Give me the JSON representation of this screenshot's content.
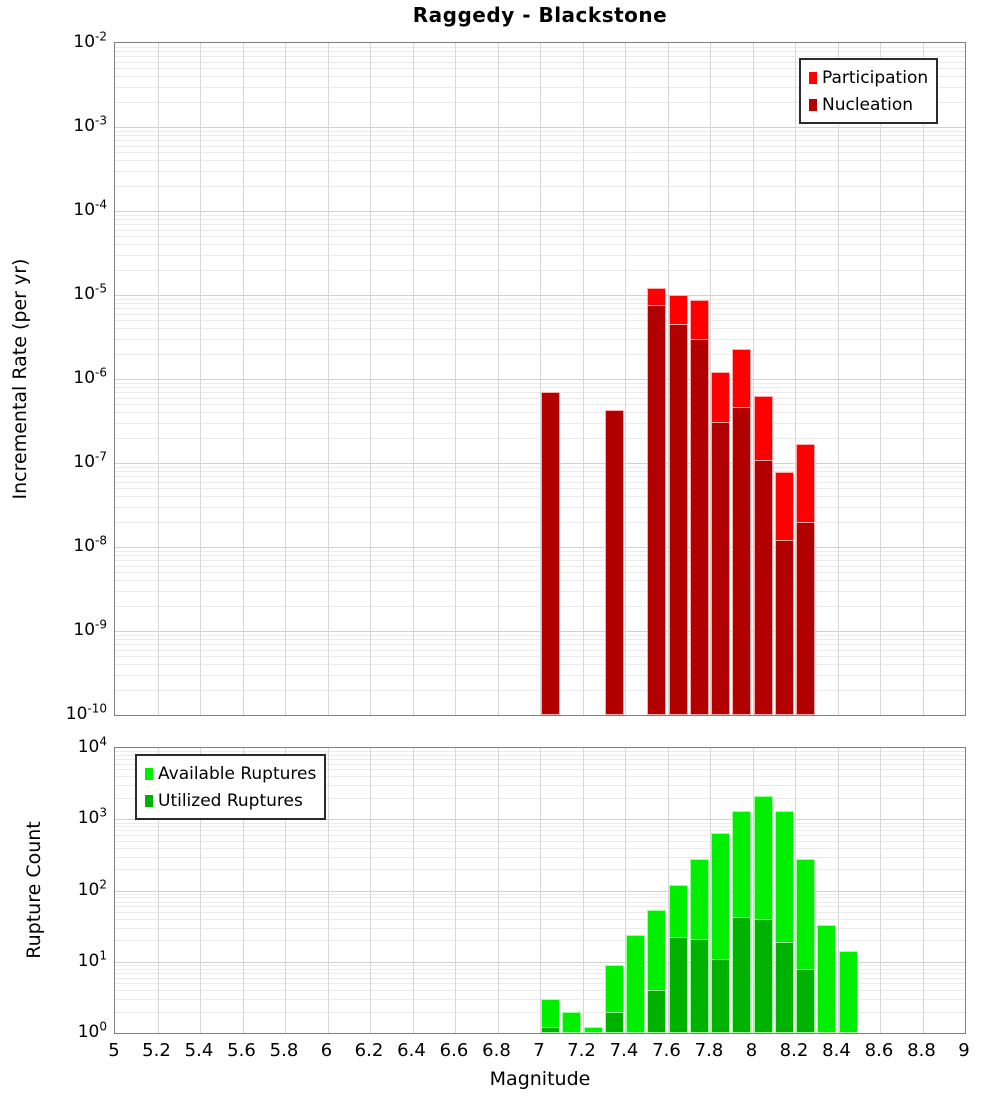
{
  "title": "Raggedy - Blackstone",
  "x_axis": {
    "label": "Magnitude",
    "xlim": [
      5,
      9
    ],
    "tick_labels": [
      "5",
      "5.2",
      "5.4",
      "5.6",
      "5.8",
      "6",
      "6.2",
      "6.4",
      "6.6",
      "6.8",
      "7",
      "7.2",
      "7.4",
      "7.6",
      "7.8",
      "8",
      "8.2",
      "8.4",
      "8.6",
      "8.8",
      "9"
    ]
  },
  "chart_data": [
    {
      "id": "rate",
      "type": "bar",
      "title": "Raggedy - Blackstone",
      "ylabel": "Incremental Rate (per yr)",
      "y_scale": "log",
      "ylim": [
        1e-10,
        0.01
      ],
      "y_tick_exponents": [
        -2,
        -3,
        -4,
        -5,
        -6,
        -7,
        -8,
        -9,
        -10
      ],
      "grid": true,
      "legend_position": "top-right",
      "bin_width": 0.1,
      "categories": [
        7.05,
        7.35,
        7.55,
        7.65,
        7.75,
        7.85,
        7.95,
        8.05,
        8.15,
        8.25
      ],
      "series": [
        {
          "name": "Participation",
          "color": "#ff0000",
          "edge_color": "#ffaaaa",
          "values": [
            7e-07,
            4.3e-07,
            1.2e-05,
            9.9e-06,
            8.7e-06,
            1.2e-06,
            2.3e-06,
            6.3e-07,
            7.8e-08,
            1.7e-07
          ]
        },
        {
          "name": "Nucleation",
          "color": "#b20000",
          "edge_color": "#ffaaaa",
          "values": [
            7e-07,
            4.3e-07,
            7.6e-06,
            4.5e-06,
            3e-06,
            3.1e-07,
            4.7e-07,
            1.1e-07,
            1.2e-08,
            2e-08
          ]
        }
      ]
    },
    {
      "id": "count",
      "type": "bar",
      "ylabel": "Rupture Count",
      "y_scale": "log",
      "ylim": [
        1,
        10000.0
      ],
      "y_tick_exponents": [
        4,
        3,
        2,
        1,
        0
      ],
      "grid": true,
      "legend_position": "top-left",
      "bin_width": 0.1,
      "categories": [
        7.05,
        7.15,
        7.25,
        7.35,
        7.45,
        7.55,
        7.65,
        7.75,
        7.85,
        7.95,
        8.05,
        8.15,
        8.25,
        8.35,
        8.45
      ],
      "series": [
        {
          "name": "Available Ruptures",
          "color": "#00ee00",
          "edge_color": "#9cff9c",
          "values": [
            3,
            2,
            1,
            9,
            24,
            54,
            120,
            280,
            640,
            1300,
            2100,
            1290,
            280,
            33,
            14
          ]
        },
        {
          "name": "Utilized Ruptures",
          "color": "#00b200",
          "edge_color": "#9cff9c",
          "values": [
            1,
            0,
            0,
            2,
            0,
            4,
            22,
            21,
            11,
            42,
            40,
            19,
            8,
            0,
            0
          ]
        }
      ]
    }
  ]
}
